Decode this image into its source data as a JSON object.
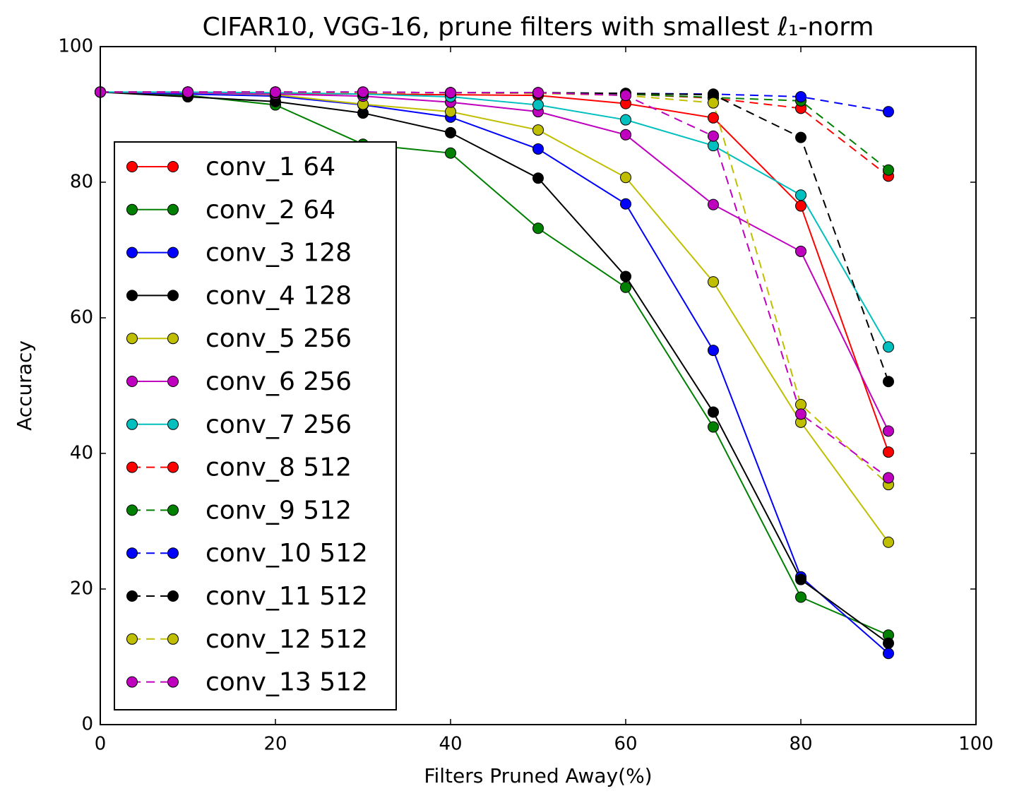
{
  "chart_data": {
    "type": "line",
    "title": "CIFAR10, VGG-16, prune filters with smallest ℓ₁-norm",
    "x_label": "Filters Pruned Away(%)",
    "y_label": "Accuracy",
    "x": [
      0,
      10,
      20,
      30,
      40,
      50,
      60,
      70,
      80,
      90
    ],
    "xlim": [
      0,
      100
    ],
    "xticks": [
      0,
      20,
      40,
      60,
      80,
      100
    ],
    "ylim": [
      0,
      100
    ],
    "yticks": [
      0,
      20,
      40,
      60,
      80,
      100
    ],
    "legend": "lower left",
    "series": [
      {
        "name": "conv_1 64",
        "color": "#ff0000",
        "linestyle": "solid",
        "values": [
          93.3,
          93.2,
          93.1,
          93.0,
          92.9,
          92.8,
          91.6,
          89.5,
          76.5,
          40.2
        ]
      },
      {
        "name": "conv_2 64",
        "color": "#008000",
        "linestyle": "solid",
        "values": [
          93.3,
          92.8,
          91.4,
          85.6,
          84.3,
          73.2,
          64.5,
          43.9,
          18.8,
          13.2
        ]
      },
      {
        "name": "conv_3 128",
        "color": "#0000ff",
        "linestyle": "solid",
        "values": [
          93.3,
          93.0,
          92.7,
          91.4,
          89.6,
          84.9,
          76.8,
          55.2,
          21.8,
          10.5
        ]
      },
      {
        "name": "conv_4 128",
        "color": "#000000",
        "linestyle": "solid",
        "values": [
          93.3,
          92.6,
          91.9,
          90.2,
          87.3,
          80.6,
          66.1,
          46.1,
          21.4,
          12.0
        ]
      },
      {
        "name": "conv_5 256",
        "color": "#bfbf00",
        "linestyle": "solid",
        "values": [
          93.3,
          93.2,
          92.9,
          91.5,
          90.4,
          87.7,
          80.7,
          65.3,
          44.6,
          26.9
        ]
      },
      {
        "name": "conv_6 256",
        "color": "#bf00bf",
        "linestyle": "solid",
        "values": [
          93.3,
          93.2,
          93.0,
          92.7,
          91.8,
          90.4,
          87.0,
          76.7,
          69.8,
          43.3
        ]
      },
      {
        "name": "conv_7 256",
        "color": "#00bfbf",
        "linestyle": "solid",
        "values": [
          93.3,
          93.3,
          93.2,
          93.0,
          92.6,
          91.4,
          89.2,
          85.4,
          78.1,
          55.7
        ]
      },
      {
        "name": "conv_8 512",
        "color": "#ff0000",
        "linestyle": "dashed",
        "values": [
          93.3,
          93.3,
          93.3,
          93.2,
          93.2,
          93.1,
          93.0,
          92.4,
          90.9,
          80.9
        ]
      },
      {
        "name": "conv_9 512",
        "color": "#008000",
        "linestyle": "dashed",
        "values": [
          93.3,
          93.3,
          93.3,
          93.2,
          93.2,
          93.1,
          93.0,
          92.5,
          92.0,
          81.8
        ]
      },
      {
        "name": "conv_10 512",
        "color": "#0000ff",
        "linestyle": "dashed",
        "values": [
          93.3,
          93.3,
          93.3,
          93.3,
          93.2,
          93.2,
          93.1,
          93.0,
          92.6,
          90.4
        ]
      },
      {
        "name": "conv_11 512",
        "color": "#000000",
        "linestyle": "dashed",
        "values": [
          93.3,
          93.3,
          93.3,
          93.3,
          93.2,
          93.2,
          93.1,
          92.9,
          86.6,
          50.6
        ]
      },
      {
        "name": "conv_12 512",
        "color": "#bfbf00",
        "linestyle": "dashed",
        "values": [
          93.3,
          93.3,
          93.3,
          93.2,
          93.2,
          93.1,
          92.8,
          91.7,
          47.2,
          35.4
        ]
      },
      {
        "name": "conv_13 512",
        "color": "#bf00bf",
        "linestyle": "dashed",
        "values": [
          93.3,
          93.3,
          93.3,
          93.3,
          93.2,
          93.2,
          92.8,
          86.8,
          45.8,
          36.4
        ]
      }
    ]
  }
}
